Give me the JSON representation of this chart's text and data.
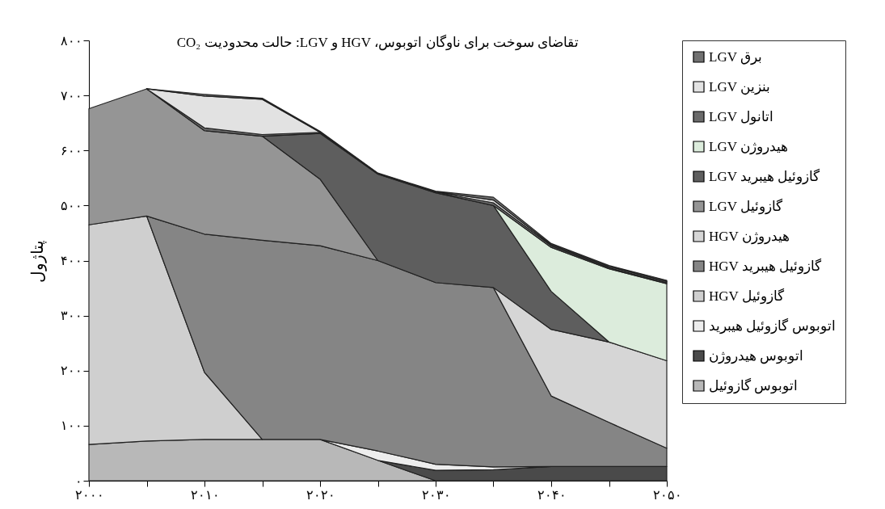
{
  "chart_data": {
    "type": "area",
    "title": "تقاضای سوخت برای ناوگان اتوبوس، HGV و LGV: حالت محدودیت CO₂",
    "ylabel": "پتاژول",
    "stacked": true,
    "legend": "right",
    "grid": false,
    "x": [
      2000,
      2005,
      2010,
      2015,
      2020,
      2025,
      2030,
      2035,
      2040,
      2045,
      2050
    ],
    "xlim": [
      2000,
      2050
    ],
    "xticks": [
      {
        "value": 2000,
        "label": "۲۰۰۰"
      },
      {
        "value": 2005,
        "label": null
      },
      {
        "value": 2010,
        "label": "۲۰۱۰"
      },
      {
        "value": 2015,
        "label": null
      },
      {
        "value": 2020,
        "label": "۲۰۲۰"
      },
      {
        "value": 2025,
        "label": null
      },
      {
        "value": 2030,
        "label": "۲۰۳۰"
      },
      {
        "value": 2035,
        "label": null
      },
      {
        "value": 2040,
        "label": "۲۰۴۰"
      },
      {
        "value": 2045,
        "label": null
      },
      {
        "value": 2050,
        "label": "۲۰۵۰"
      }
    ],
    "ylim": [
      0,
      800
    ],
    "yticks": [
      {
        "value": 0,
        "label": "۰"
      },
      {
        "value": 100,
        "label": "۱۰۰"
      },
      {
        "value": 200,
        "label": "۲۰۰"
      },
      {
        "value": 300,
        "label": "۳۰۰"
      },
      {
        "value": 400,
        "label": "۴۰۰"
      },
      {
        "value": 500,
        "label": "۵۰۰"
      },
      {
        "value": 600,
        "label": "۶۰۰"
      },
      {
        "value": 700,
        "label": "۷۰۰"
      },
      {
        "value": 800,
        "label": "۸۰۰"
      }
    ],
    "series": [
      {
        "name": "اتوبوس گازوئیل",
        "color": "#b8b8b8",
        "values": [
          66,
          72,
          75,
          75,
          75,
          37,
          0,
          0,
          0,
          0,
          0
        ]
      },
      {
        "name": "اتوبوس هیدروژن",
        "color": "#4a4a4a",
        "values": [
          null,
          null,
          null,
          null,
          null,
          0,
          19,
          20,
          26,
          26,
          26
        ]
      },
      {
        "name": "اتوبوس گازوئیل هیبرید",
        "color": "#ededed",
        "values": [
          null,
          null,
          null,
          null,
          0,
          17,
          11,
          5,
          0,
          null,
          null
        ]
      },
      {
        "name": "گازوئیل HGV",
        "color": "#cfcfcf",
        "values": [
          399,
          409,
          122,
          0,
          null,
          null,
          null,
          null,
          null,
          null,
          null
        ]
      },
      {
        "name": "گازوئیل هیبرید HGV",
        "color": "#858585",
        "values": [
          null,
          0,
          251,
          362,
          352,
          346,
          330,
          326,
          128,
          80,
          33
        ]
      },
      {
        "name": "هیدروژن HGV",
        "color": "#d6d6d6",
        "values": [
          null,
          null,
          null,
          null,
          null,
          null,
          null,
          0,
          121,
          146,
          159
        ]
      },
      {
        "name": "گازوئیل LGV",
        "color": "#959595",
        "values": [
          211,
          231,
          188,
          189,
          121,
          0,
          null,
          null,
          null,
          null,
          null
        ]
      },
      {
        "name": "گازوئیل هیبرید LGV",
        "color": "#5e5e5e",
        "values": [
          null,
          null,
          null,
          0,
          83,
          157,
          163,
          149,
          69,
          0,
          null
        ]
      },
      {
        "name": "هیدروژن LGV",
        "color": "#dcecdc",
        "values": [
          null,
          null,
          null,
          null,
          null,
          null,
          null,
          0,
          80,
          133,
          140
        ]
      },
      {
        "name": "اتانول LGV",
        "color": "#6a6a6a",
        "values": [
          null,
          0,
          5,
          3,
          2,
          1,
          1,
          5,
          3,
          2,
          2
        ]
      },
      {
        "name": "بنزین LGV",
        "color": "#e2e2e2",
        "values": [
          null,
          0,
          58,
          64,
          0,
          0,
          1,
          5,
          2,
          2,
          2
        ]
      },
      {
        "name": "برق LGV",
        "color": "#707070",
        "values": [
          null,
          0,
          3,
          2,
          2,
          1,
          1,
          5,
          2,
          2,
          2
        ]
      }
    ]
  }
}
